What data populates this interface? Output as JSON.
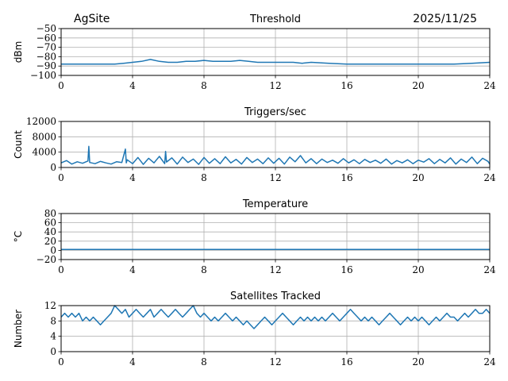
{
  "header": {
    "site": "AgSite",
    "date": "2025/11/25"
  },
  "chart_data": [
    {
      "type": "line",
      "title": "Threshold",
      "ylabel": "dBm",
      "xlim": [
        0,
        24
      ],
      "ylim": [
        -100,
        -50
      ],
      "xticks": [
        0,
        4,
        8,
        12,
        16,
        20,
        24
      ],
      "yticks": [
        -100,
        -90,
        -80,
        -70,
        -60,
        -50
      ],
      "ytick_labels": [
        "−100",
        "−90",
        "−80",
        "−70",
        "−60",
        "−50"
      ],
      "grid": true,
      "series": [
        {
          "color": "#1f77b4",
          "x": [
            0,
            1,
            2,
            3,
            3.5,
            4,
            4.5,
            5,
            5.5,
            6,
            6.5,
            7,
            7.5,
            8,
            8.5,
            9,
            9.5,
            10,
            10.5,
            11,
            11.5,
            12,
            12.5,
            13,
            13.5,
            14,
            15,
            16,
            17,
            18,
            19,
            20,
            21,
            22,
            23,
            24
          ],
          "y": [
            -88,
            -88,
            -88,
            -88,
            -87,
            -86,
            -85,
            -83,
            -85,
            -86,
            -86,
            -85,
            -85,
            -84,
            -85,
            -85,
            -85,
            -84,
            -85,
            -86,
            -86,
            -86,
            -86,
            -86,
            -87,
            -86,
            -87,
            -88,
            -88,
            -88,
            -88,
            -88,
            -88,
            -88,
            -87,
            -86
          ]
        }
      ]
    },
    {
      "type": "line",
      "title": "Triggers/sec",
      "ylabel": "Count",
      "xlim": [
        0,
        24
      ],
      "ylim": [
        0,
        12000
      ],
      "xticks": [
        0,
        4,
        8,
        12,
        16,
        20,
        24
      ],
      "yticks": [
        0,
        4000,
        8000,
        12000
      ],
      "ytick_labels": [
        "0",
        "4000",
        "8000",
        "12000"
      ],
      "grid": true,
      "series": [
        {
          "color": "#1f77b4",
          "x": [
            0,
            0.3,
            0.6,
            0.9,
            1.2,
            1.5,
            1.55,
            1.6,
            1.9,
            2.2,
            2.5,
            2.8,
            3.1,
            3.4,
            3.6,
            3.65,
            3.7,
            4.0,
            4.3,
            4.6,
            4.9,
            5.2,
            5.5,
            5.8,
            5.85,
            5.9,
            6.2,
            6.5,
            6.8,
            7.1,
            7.4,
            7.7,
            8.0,
            8.3,
            8.6,
            8.9,
            9.2,
            9.5,
            9.8,
            10.1,
            10.4,
            10.7,
            11.0,
            11.3,
            11.6,
            11.9,
            12.2,
            12.5,
            12.8,
            13.1,
            13.4,
            13.7,
            14.0,
            14.3,
            14.6,
            14.9,
            15.2,
            15.5,
            15.8,
            16.1,
            16.4,
            16.7,
            17.0,
            17.3,
            17.6,
            17.9,
            18.2,
            18.5,
            18.8,
            19.1,
            19.4,
            19.7,
            20.0,
            20.3,
            20.6,
            20.9,
            21.2,
            21.5,
            21.8,
            22.1,
            22.4,
            22.7,
            23.0,
            23.3,
            23.6,
            23.9,
            24
          ],
          "y": [
            1200,
            1800,
            900,
            1500,
            1100,
            1700,
            5500,
            1300,
            1000,
            1600,
            1200,
            900,
            1500,
            1300,
            4800,
            1200,
            2000,
            1000,
            2600,
            800,
            2400,
            1200,
            2900,
            1000,
            4200,
            1400,
            2500,
            900,
            2700,
            1300,
            2200,
            800,
            2600,
            1100,
            2300,
            1000,
            2800,
            1200,
            2100,
            900,
            2600,
            1300,
            2200,
            1000,
            2500,
            1100,
            2400,
            900,
            2700,
            1500,
            3100,
            1200,
            2300,
            1000,
            2200,
            1300,
            1900,
            1100,
            2300,
            1200,
            2000,
            1000,
            2100,
            1300,
            1900,
            1100,
            2200,
            900,
            1800,
            1200,
            2000,
            1000,
            1900,
            1400,
            2300,
            1000,
            2100,
            1200,
            2500,
            900,
            2200,
            1300,
            2700,
            1000,
            2400,
            1600,
            900
          ]
        }
      ]
    },
    {
      "type": "line",
      "title": "Temperature",
      "ylabel": "°C",
      "xlim": [
        0,
        24
      ],
      "ylim": [
        -20,
        80
      ],
      "xticks": [
        0,
        4,
        8,
        12,
        16,
        20,
        24
      ],
      "yticks": [
        -20,
        0,
        20,
        40,
        60,
        80
      ],
      "ytick_labels": [
        "−20",
        "0",
        "20",
        "40",
        "60",
        "80"
      ],
      "grid": true,
      "series": [
        {
          "color": "#1f77b4",
          "x": [
            0,
            24
          ],
          "y": [
            2,
            2
          ]
        }
      ]
    },
    {
      "type": "line",
      "title": "Satellites Tracked",
      "ylabel": "Number",
      "xlim": [
        0,
        24
      ],
      "ylim": [
        0,
        12
      ],
      "xticks": [
        0,
        4,
        8,
        12,
        16,
        20,
        24
      ],
      "yticks": [
        0,
        4,
        8,
        12
      ],
      "ytick_labels": [
        "0",
        "4",
        "8",
        "12"
      ],
      "grid": true,
      "series": [
        {
          "color": "#1f77b4",
          "x": [
            0,
            0.2,
            0.4,
            0.6,
            0.8,
            1.0,
            1.2,
            1.4,
            1.6,
            1.8,
            2.0,
            2.2,
            2.4,
            2.6,
            2.8,
            3.0,
            3.2,
            3.4,
            3.6,
            3.8,
            4.0,
            4.2,
            4.4,
            4.6,
            4.8,
            5.0,
            5.2,
            5.4,
            5.6,
            5.8,
            6.0,
            6.2,
            6.4,
            6.6,
            6.8,
            7.0,
            7.2,
            7.4,
            7.6,
            7.8,
            8.0,
            8.2,
            8.4,
            8.6,
            8.8,
            9.0,
            9.2,
            9.4,
            9.6,
            9.8,
            10.0,
            10.2,
            10.4,
            10.6,
            10.8,
            11.0,
            11.2,
            11.4,
            11.6,
            11.8,
            12.0,
            12.2,
            12.4,
            12.6,
            12.8,
            13.0,
            13.2,
            13.4,
            13.6,
            13.8,
            14.0,
            14.2,
            14.4,
            14.6,
            14.8,
            15.0,
            15.2,
            15.4,
            15.6,
            15.8,
            16.0,
            16.2,
            16.4,
            16.6,
            16.8,
            17.0,
            17.2,
            17.4,
            17.6,
            17.8,
            18.0,
            18.2,
            18.4,
            18.6,
            18.8,
            19.0,
            19.2,
            19.4,
            19.6,
            19.8,
            20.0,
            20.2,
            20.4,
            20.6,
            20.8,
            21.0,
            21.2,
            21.4,
            21.6,
            21.8,
            22.0,
            22.2,
            22.4,
            22.6,
            22.8,
            23.0,
            23.2,
            23.4,
            23.6,
            23.8,
            24
          ],
          "y": [
            9,
            10,
            9,
            10,
            9,
            10,
            8,
            9,
            8,
            9,
            8,
            7,
            8,
            9,
            10,
            12,
            11,
            10,
            11,
            9,
            10,
            11,
            10,
            9,
            10,
            11,
            9,
            10,
            11,
            10,
            9,
            10,
            11,
            10,
            9,
            10,
            11,
            12,
            10,
            9,
            10,
            9,
            8,
            9,
            8,
            9,
            10,
            9,
            8,
            9,
            8,
            7,
            8,
            7,
            6,
            7,
            8,
            9,
            8,
            7,
            8,
            9,
            10,
            9,
            8,
            7,
            8,
            9,
            8,
            9,
            8,
            9,
            8,
            9,
            8,
            9,
            10,
            9,
            8,
            9,
            10,
            11,
            10,
            9,
            8,
            9,
            8,
            9,
            8,
            7,
            8,
            9,
            10,
            9,
            8,
            7,
            8,
            9,
            8,
            9,
            8,
            9,
            8,
            7,
            8,
            9,
            8,
            9,
            10,
            9,
            9,
            8,
            9,
            10,
            9,
            10,
            11,
            10,
            10,
            11,
            10
          ]
        }
      ]
    }
  ]
}
